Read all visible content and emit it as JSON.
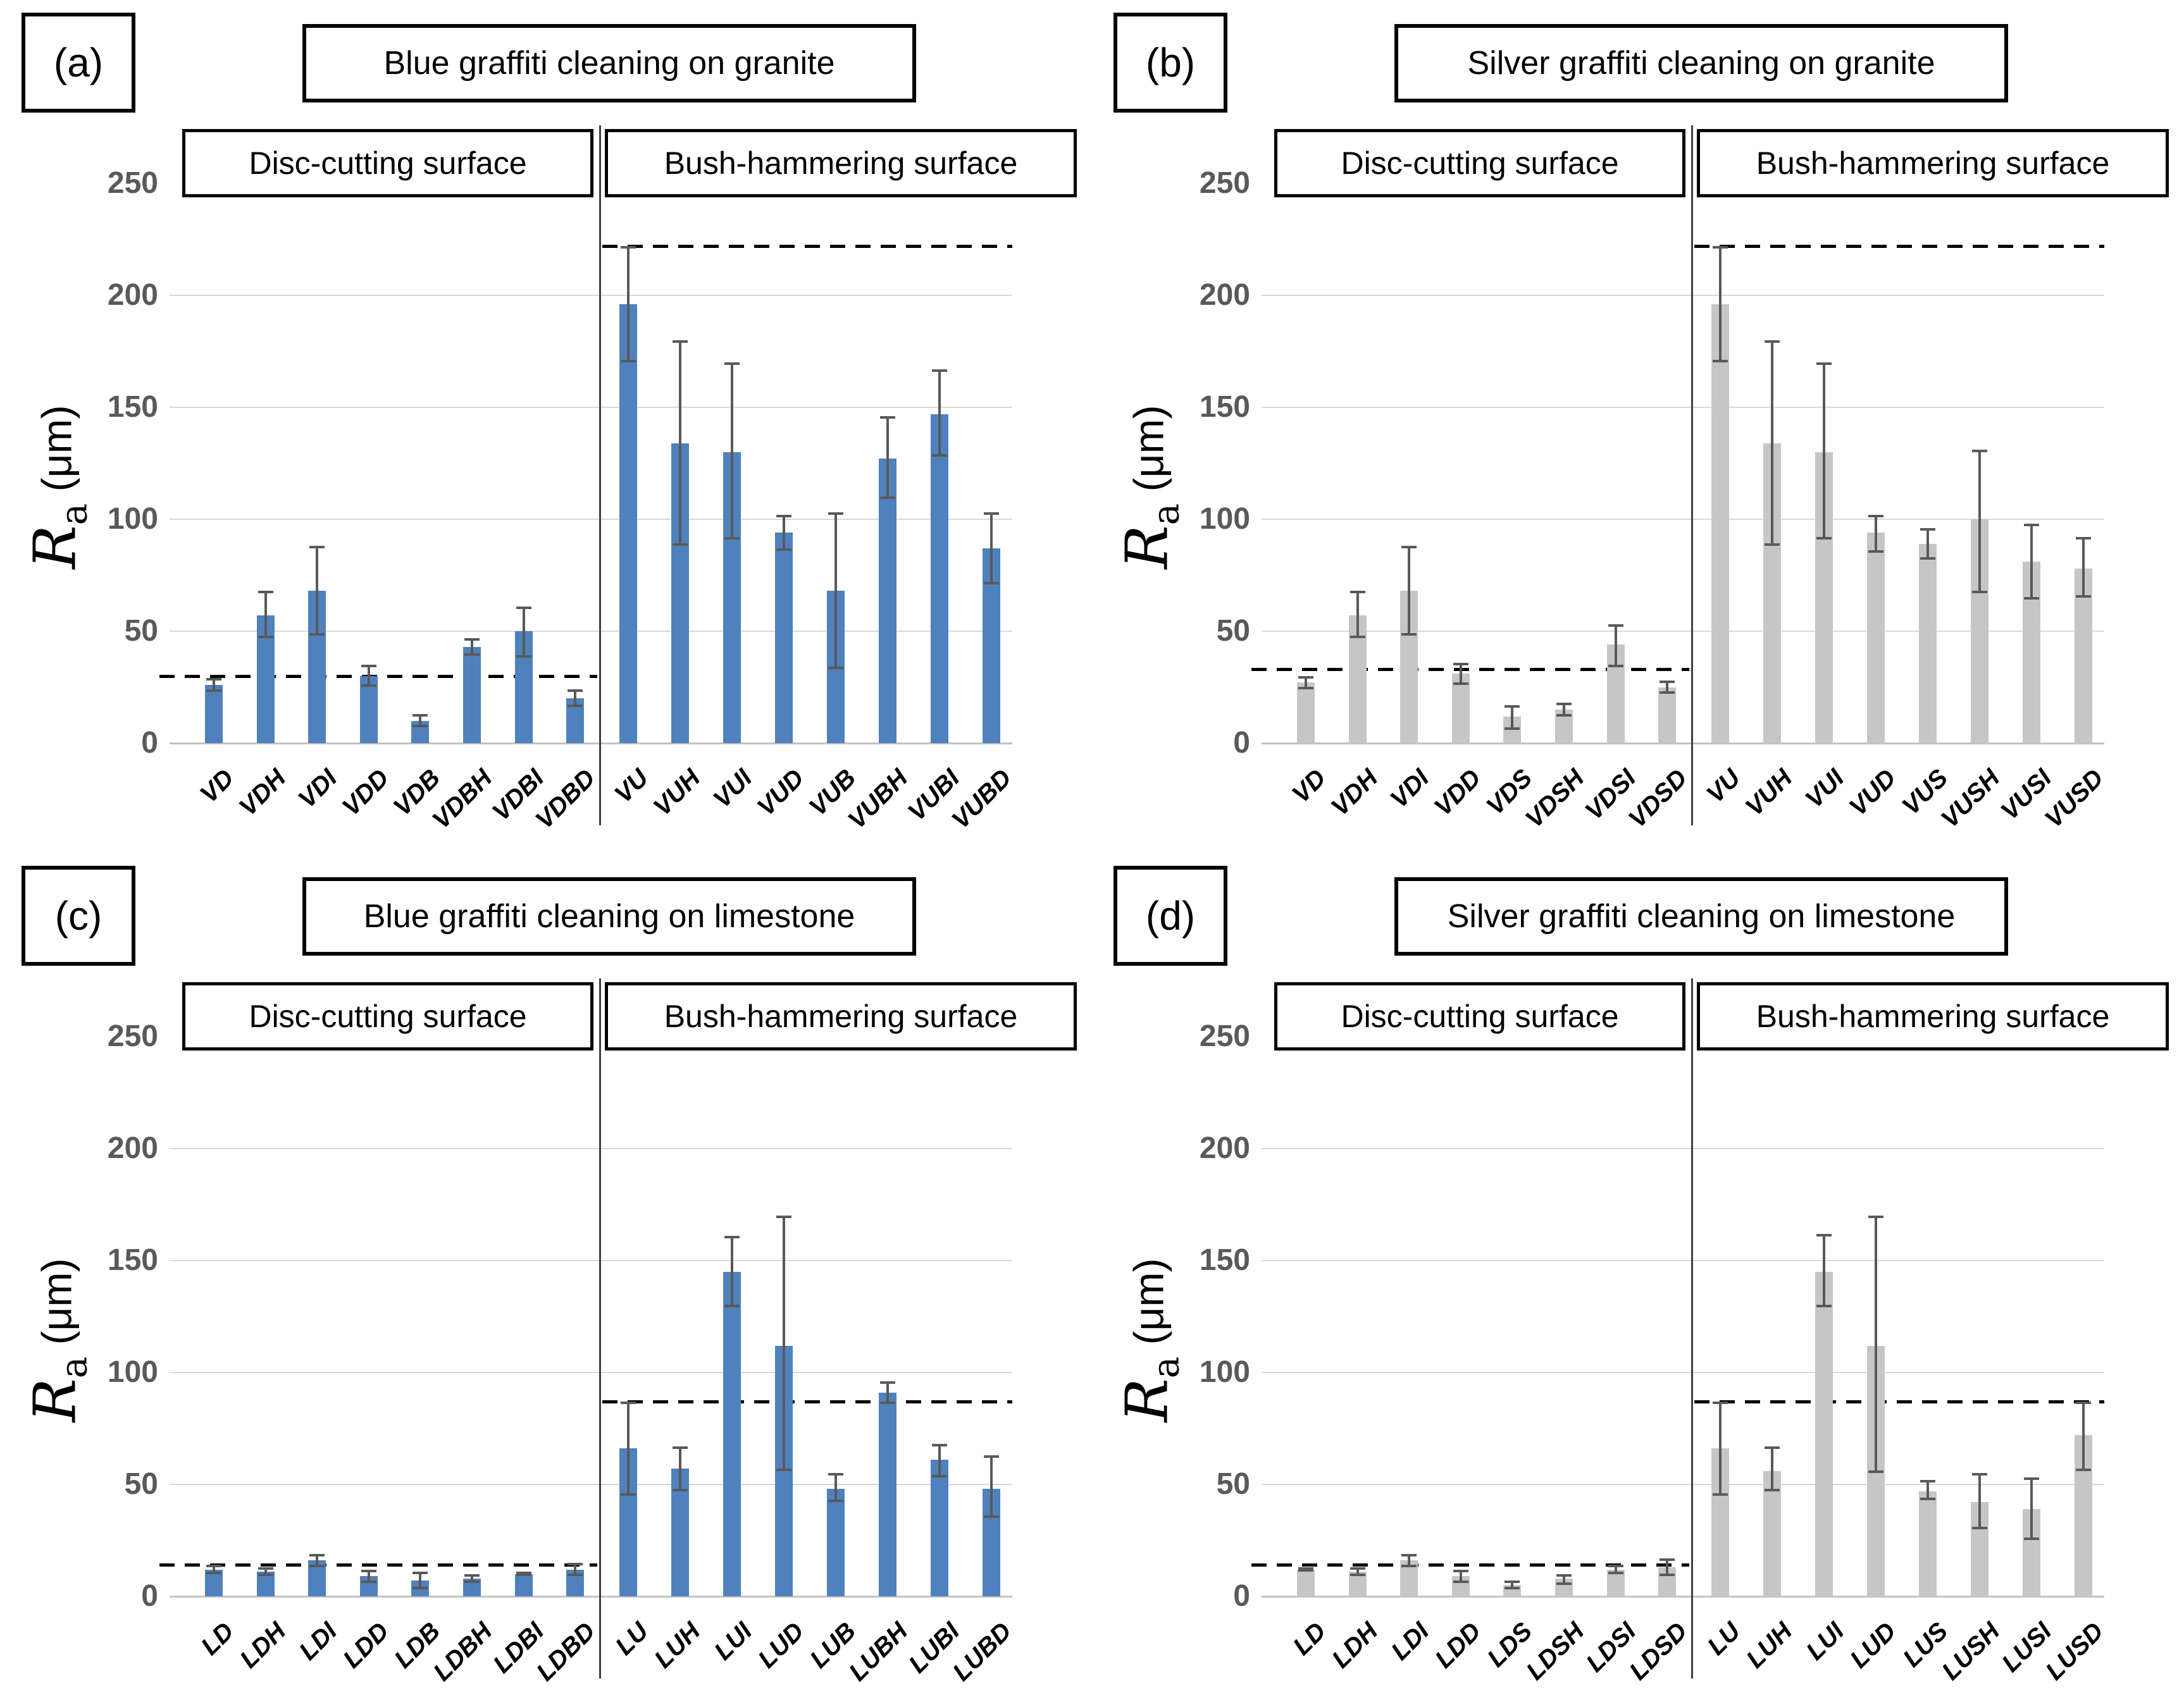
{
  "figure": {
    "ylabel": {
      "symbol": "R",
      "subscript": "a",
      "unit": " (μm)"
    },
    "colors": {
      "blue_bar": "#4f81bd",
      "gray_bar": "#c6c6c6",
      "error_bar": "#595959",
      "gridline": "#d9d9d9",
      "axis_text": "#595959",
      "reference_line": "#000000"
    }
  },
  "chart_data": [
    {
      "type": "bar",
      "panel": "(a)",
      "title": "Blue graffiti cleaning on granite",
      "ylabel": "Ra (μm)",
      "ylim": [
        0,
        250
      ],
      "yticks": [
        0,
        50,
        100,
        150,
        200,
        250
      ],
      "grid": true,
      "bar_color": "#4f81bd",
      "sections": [
        {
          "label": "Disc-cutting surface",
          "reference_line": 30,
          "categories": [
            "VD",
            "VDH",
            "VDI",
            "VDD",
            "VDB",
            "VDBH",
            "VDBI",
            "VDBD"
          ],
          "values": [
            26,
            57,
            68,
            30,
            10,
            43,
            50,
            20
          ],
          "error_min": [
            23,
            47,
            48,
            25,
            7,
            39,
            38,
            16
          ],
          "error_max": [
            29,
            68,
            88,
            35,
            13,
            47,
            61,
            24
          ]
        },
        {
          "label": "Bush-hammering surface",
          "reference_line": 222,
          "categories": [
            "VU",
            "VUH",
            "VUI",
            "VUD",
            "VUB",
            "VUBH",
            "VUBI",
            "VUBD"
          ],
          "values": [
            196,
            134,
            130,
            94,
            68,
            127,
            147,
            87
          ],
          "error_min": [
            170,
            88,
            91,
            86,
            33,
            109,
            128,
            71
          ],
          "error_max": [
            222,
            180,
            170,
            102,
            103,
            146,
            167,
            103
          ]
        }
      ]
    },
    {
      "type": "bar",
      "panel": "(b)",
      "title": "Silver graffiti cleaning on granite",
      "ylabel": "Ra (μm)",
      "ylim": [
        0,
        250
      ],
      "yticks": [
        0,
        50,
        100,
        150,
        200,
        250
      ],
      "grid": true,
      "bar_color": "#c6c6c6",
      "sections": [
        {
          "label": "Disc-cutting surface",
          "reference_line": 33,
          "categories": [
            "VD",
            "VDH",
            "VDI",
            "VDD",
            "VDS",
            "VDSH",
            "VDSI",
            "VDSD"
          ],
          "values": [
            27,
            57,
            68,
            31,
            12,
            15,
            44,
            25
          ],
          "error_min": [
            24,
            47,
            48,
            26,
            6,
            12,
            34,
            22
          ],
          "error_max": [
            30,
            68,
            88,
            36,
            17,
            18,
            53,
            28
          ]
        },
        {
          "label": "Bush-hammering surface",
          "reference_line": 222,
          "categories": [
            "VU",
            "VUH",
            "VUI",
            "VUD",
            "VUS",
            "VUSH",
            "VUSI",
            "VUSD"
          ],
          "values": [
            196,
            134,
            130,
            94,
            89,
            100,
            81,
            78
          ],
          "error_min": [
            170,
            88,
            91,
            85,
            82,
            67,
            64,
            65
          ],
          "error_max": [
            222,
            180,
            170,
            102,
            96,
            131,
            98,
            92
          ]
        }
      ]
    },
    {
      "type": "bar",
      "panel": "(c)",
      "title": "Blue graffiti cleaning on limestone",
      "ylabel": "Ra (μm)",
      "ylim": [
        0,
        250
      ],
      "yticks": [
        0,
        50,
        100,
        150,
        200,
        250
      ],
      "grid": true,
      "bar_color": "#4f81bd",
      "sections": [
        {
          "label": "Disc-cutting surface",
          "reference_line": 14,
          "categories": [
            "LD",
            "LDH",
            "LDI",
            "LDD",
            "LDB",
            "LDBH",
            "LDBI",
            "LDBD"
          ],
          "values": [
            12,
            11,
            16,
            9,
            7,
            8,
            10,
            12
          ],
          "error_min": [
            10,
            9,
            13,
            6,
            3,
            6,
            9,
            9
          ],
          "error_max": [
            14,
            13,
            19,
            12,
            11,
            10,
            11,
            15
          ]
        },
        {
          "label": "Bush-hammering surface",
          "reference_line": 87,
          "categories": [
            "LU",
            "LUH",
            "LUI",
            "LUD",
            "LUB",
            "LUBH",
            "LUBI",
            "LUBD"
          ],
          "values": [
            66,
            57,
            145,
            112,
            48,
            91,
            61,
            48
          ],
          "error_min": [
            45,
            47,
            129,
            56,
            42,
            86,
            53,
            35
          ],
          "error_max": [
            87,
            67,
            161,
            170,
            55,
            96,
            68,
            63
          ]
        }
      ]
    },
    {
      "type": "bar",
      "panel": "(d)",
      "title": "Silver graffiti cleaning on limestone",
      "ylabel": "Ra (μm)",
      "ylim": [
        0,
        250
      ],
      "yticks": [
        0,
        50,
        100,
        150,
        200,
        250
      ],
      "grid": true,
      "bar_color": "#c6c6c6",
      "sections": [
        {
          "label": "Disc-cutting surface",
          "reference_line": 14,
          "categories": [
            "LD",
            "LDH",
            "LDI",
            "LDD",
            "LDS",
            "LDSH",
            "LDSI",
            "LDSD"
          ],
          "values": [
            12,
            11,
            16,
            9,
            5,
            8,
            12,
            13
          ],
          "error_min": [
            11,
            9,
            13,
            6,
            3,
            5,
            10,
            9
          ],
          "error_max": [
            13,
            13,
            19,
            12,
            7,
            10,
            14,
            17
          ]
        },
        {
          "label": "Bush-hammering surface",
          "reference_line": 87,
          "categories": [
            "LU",
            "LUH",
            "LUI",
            "LUD",
            "LUS",
            "LUSH",
            "LUSI",
            "LUSD"
          ],
          "values": [
            66,
            56,
            145,
            112,
            47,
            42,
            39,
            72
          ],
          "error_min": [
            45,
            47,
            129,
            55,
            43,
            30,
            25,
            56
          ],
          "error_max": [
            87,
            67,
            162,
            170,
            52,
            55,
            53,
            87
          ]
        }
      ]
    }
  ]
}
